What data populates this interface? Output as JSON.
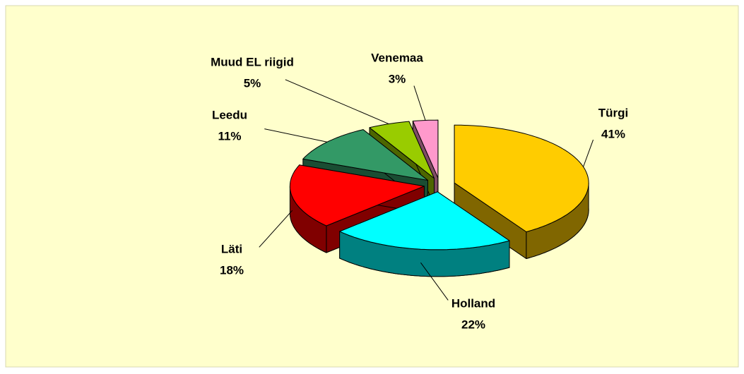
{
  "chart_data": {
    "type": "pie",
    "categories": [
      "Türgi",
      "Holland",
      "Läti",
      "Leedu",
      "Muud EL riigid",
      "Venemaa"
    ],
    "values": [
      41,
      22,
      18,
      11,
      5,
      3
    ],
    "value_labels": [
      "41%",
      "22%",
      "18%",
      "11%",
      "5%",
      "3%"
    ],
    "colors": [
      "#ffcc00",
      "#00ffff",
      "#ff0000",
      "#339966",
      "#99cc00",
      "#ff99cc"
    ]
  }
}
